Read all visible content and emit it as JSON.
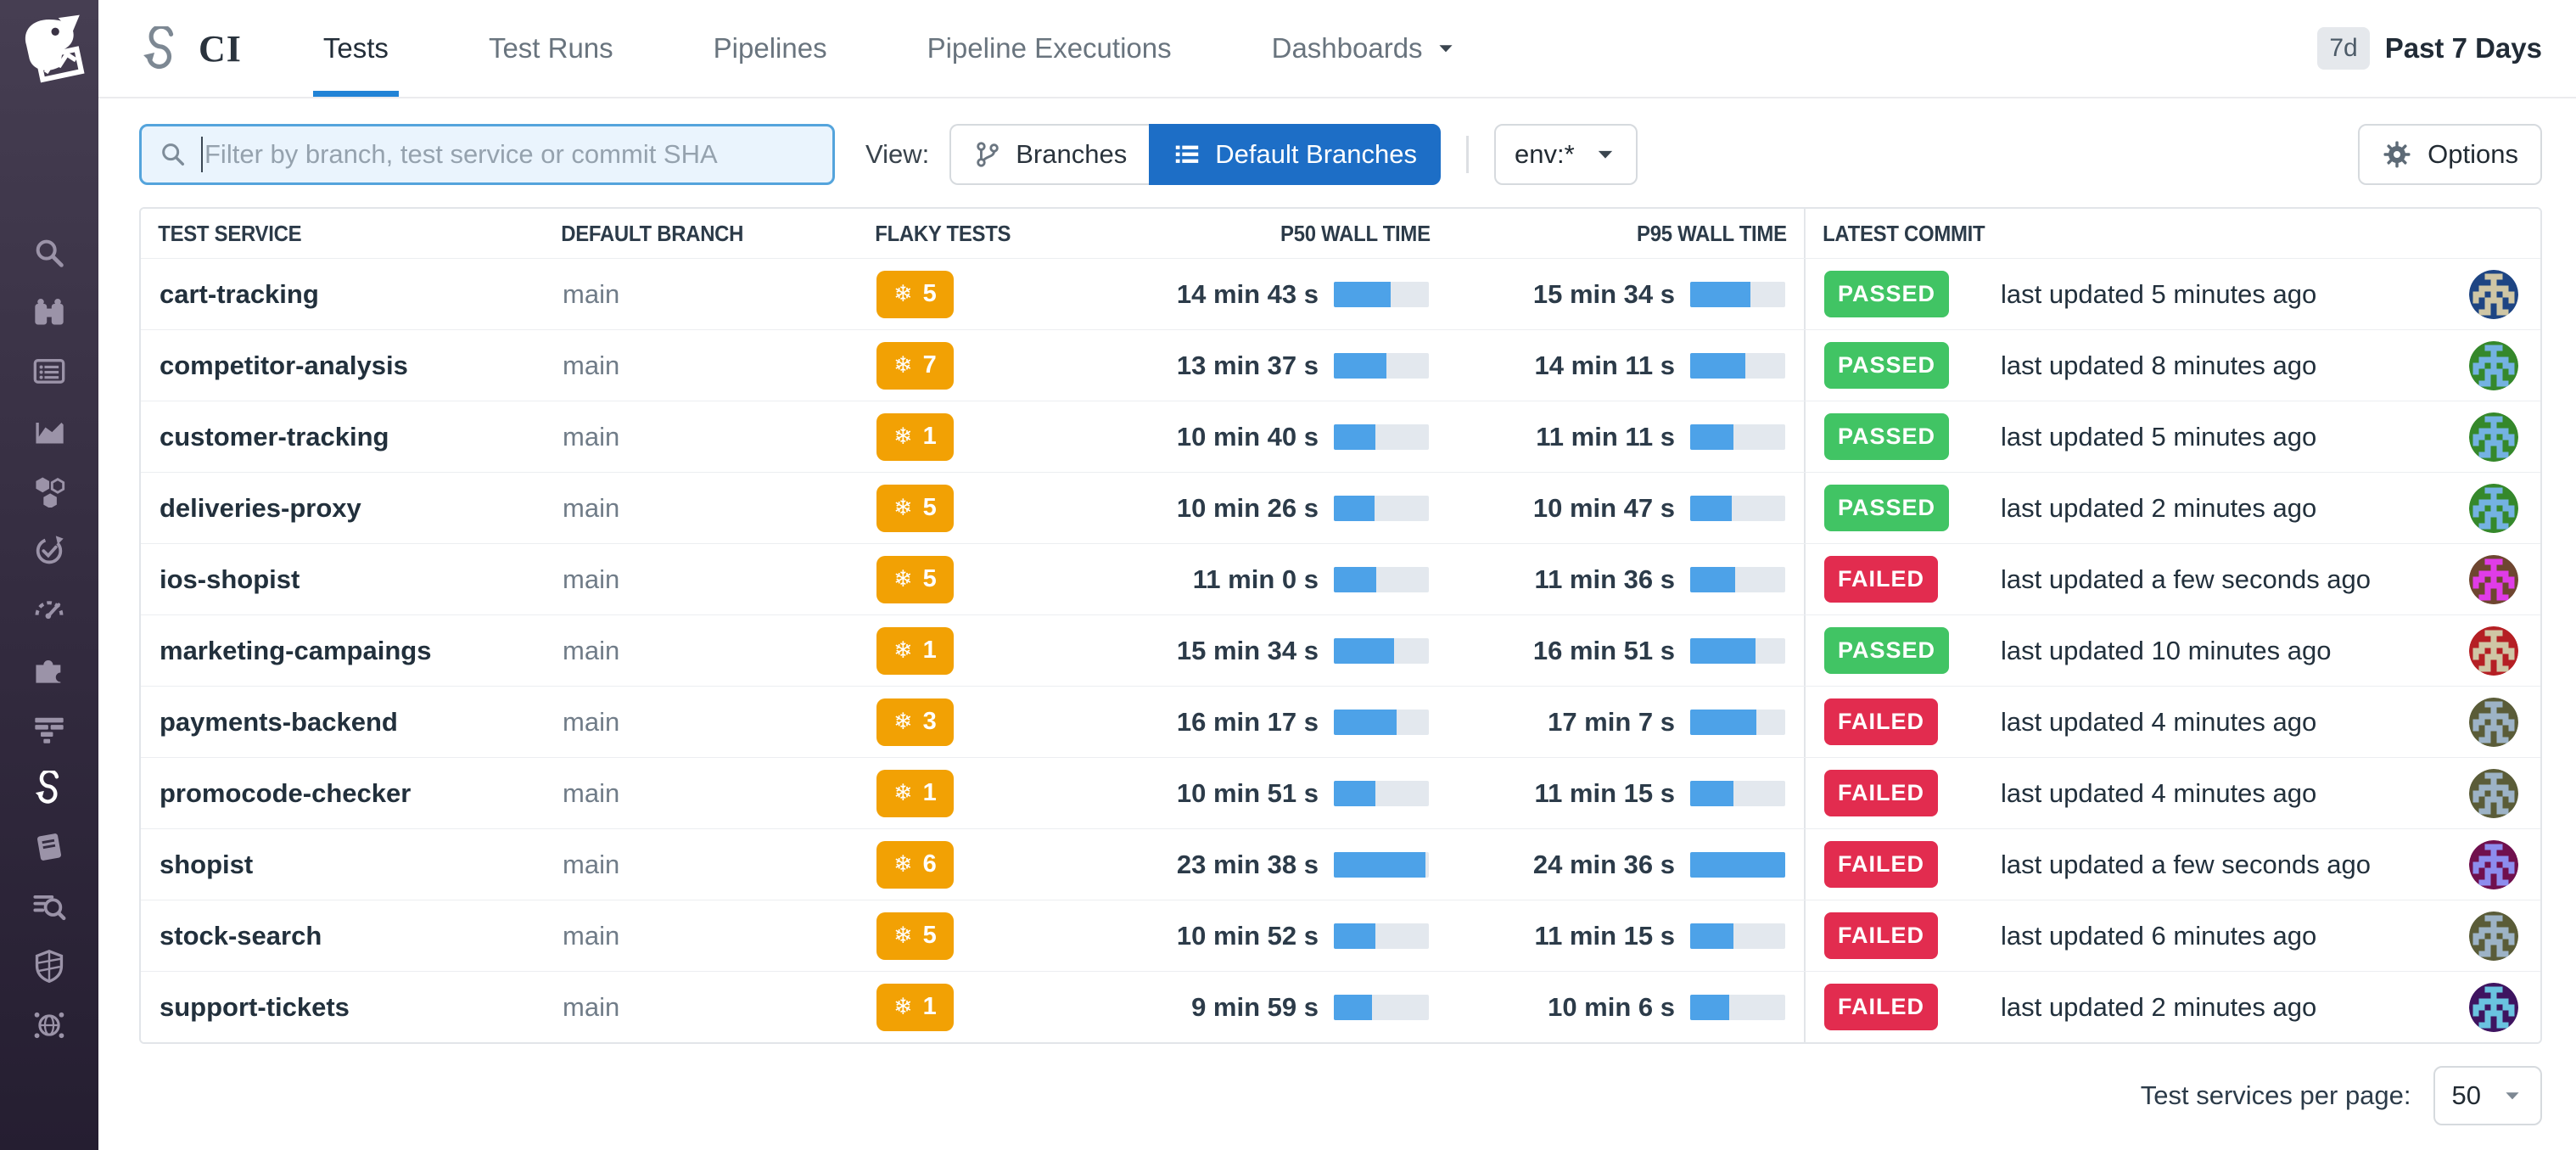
{
  "top_nav": {
    "product_label": "CI",
    "tabs": [
      {
        "label": "Tests",
        "active": true
      },
      {
        "label": "Test Runs",
        "active": false
      },
      {
        "label": "Pipelines",
        "active": false
      },
      {
        "label": "Pipeline Executions",
        "active": false
      },
      {
        "label": "Dashboards",
        "active": false,
        "dropdown": true
      }
    ],
    "time_badge": "7d",
    "time_label": "Past 7 Days"
  },
  "filter_bar": {
    "search_placeholder": "Filter by branch, test service or commit SHA",
    "search_value": "",
    "view_label": "View:",
    "branches_label": "Branches",
    "default_branches_label": "Default Branches",
    "env_filter": "env:*",
    "options_label": "Options"
  },
  "table": {
    "columns": [
      "TEST SERVICE",
      "DEFAULT BRANCH",
      "FLAKY TESTS",
      "P50 WALL TIME",
      "P95 WALL TIME",
      "LATEST COMMIT"
    ],
    "flaky_icon": "❄",
    "max_wall_time_seconds": 1476,
    "rows": [
      {
        "service": "cart-tracking",
        "branch": "main",
        "flaky": "5",
        "p50": "14 min 43 s",
        "p50_s": 883,
        "p95": "15 min 34 s",
        "p95_s": 934,
        "status": "PASSED",
        "updated": "last updated 5 minutes ago",
        "avatar": {
          "bg": "#1e4583",
          "fg": "#cfc6a5"
        }
      },
      {
        "service": "competitor-analysis",
        "branch": "main",
        "flaky": "7",
        "p50": "13 min 37 s",
        "p50_s": 817,
        "p95": "14 min 11 s",
        "p95_s": 851,
        "status": "PASSED",
        "updated": "last updated 8 minutes ago",
        "avatar": {
          "bg": "#35882b",
          "fg": "#74b2e2"
        }
      },
      {
        "service": "customer-tracking",
        "branch": "main",
        "flaky": "1",
        "p50": "10 min 40 s",
        "p50_s": 640,
        "p95": "11 min 11 s",
        "p95_s": 671,
        "status": "PASSED",
        "updated": "last updated 5 minutes ago",
        "avatar": {
          "bg": "#35882b",
          "fg": "#74b2e2"
        }
      },
      {
        "service": "deliveries-proxy",
        "branch": "main",
        "flaky": "5",
        "p50": "10 min 26 s",
        "p50_s": 626,
        "p95": "10 min 47 s",
        "p95_s": 647,
        "status": "PASSED",
        "updated": "last updated 2 minutes ago",
        "avatar": {
          "bg": "#35882b",
          "fg": "#74b2e2"
        }
      },
      {
        "service": "ios-shopist",
        "branch": "main",
        "flaky": "5",
        "p50": "11 min 0 s",
        "p50_s": 660,
        "p95": "11 min 36 s",
        "p95_s": 696,
        "status": "FAILED",
        "updated": "last updated a few seconds ago",
        "avatar": {
          "bg": "#6e4630",
          "fg": "#e03ce8"
        }
      },
      {
        "service": "marketing-campaings",
        "branch": "main",
        "flaky": "1",
        "p50": "15 min 34 s",
        "p50_s": 934,
        "p95": "16 min 51 s",
        "p95_s": 1011,
        "status": "PASSED",
        "updated": "last updated 10 minutes ago",
        "avatar": {
          "bg": "#b51f24",
          "fg": "#cfc6a5"
        }
      },
      {
        "service": "payments-backend",
        "branch": "main",
        "flaky": "3",
        "p50": "16 min 17 s",
        "p50_s": 977,
        "p95": "17 min 7 s",
        "p95_s": 1027,
        "status": "FAILED",
        "updated": "last updated 4 minutes ago",
        "avatar": {
          "bg": "#5a5c38",
          "fg": "#9db3c6"
        }
      },
      {
        "service": "promocode-checker",
        "branch": "main",
        "flaky": "1",
        "p50": "10 min 51 s",
        "p50_s": 651,
        "p95": "11 min 15 s",
        "p95_s": 675,
        "status": "FAILED",
        "updated": "last updated 4 minutes ago",
        "avatar": {
          "bg": "#5a5c38",
          "fg": "#9db3c6"
        }
      },
      {
        "service": "shopist",
        "branch": "main",
        "flaky": "6",
        "p50": "23 min 38 s",
        "p50_s": 1418,
        "p95": "24 min 36 s",
        "p95_s": 1476,
        "status": "FAILED",
        "updated": "last updated a few seconds ago",
        "avatar": {
          "bg": "#70104e",
          "fg": "#8d8dee"
        }
      },
      {
        "service": "stock-search",
        "branch": "main",
        "flaky": "5",
        "p50": "10 min 52 s",
        "p50_s": 652,
        "p95": "11 min 15 s",
        "p95_s": 675,
        "status": "FAILED",
        "updated": "last updated 6 minutes ago",
        "avatar": {
          "bg": "#5a5c38",
          "fg": "#9db3c6"
        }
      },
      {
        "service": "support-tickets",
        "branch": "main",
        "flaky": "1",
        "p50": "9 min 59 s",
        "p50_s": 599,
        "p95": "10 min 6 s",
        "p95_s": 606,
        "status": "FAILED",
        "updated": "last updated 2 minutes ago",
        "avatar": {
          "bg": "#3e1460",
          "fg": "#6ac3e0"
        }
      }
    ]
  },
  "pagination": {
    "label": "Test services per page:",
    "value": "50"
  },
  "colors": {
    "accent": "#2183d6",
    "toggle_active": "#1d6ec6",
    "flaky": "#f2a104",
    "passed": "#41c464",
    "failed": "#e22c4f",
    "bar_fill": "#4da2e8",
    "bar_track": "#e3e8ee",
    "search_border": "#54a4dc",
    "search_bg": "#eaf4fd"
  },
  "sidebar_icons": [
    "search",
    "watchdog",
    "dashboards",
    "metrics",
    "infrastructure",
    "monitors",
    "rum",
    "integrations",
    "apm",
    "ci",
    "notebooks",
    "logs",
    "security",
    "network"
  ]
}
